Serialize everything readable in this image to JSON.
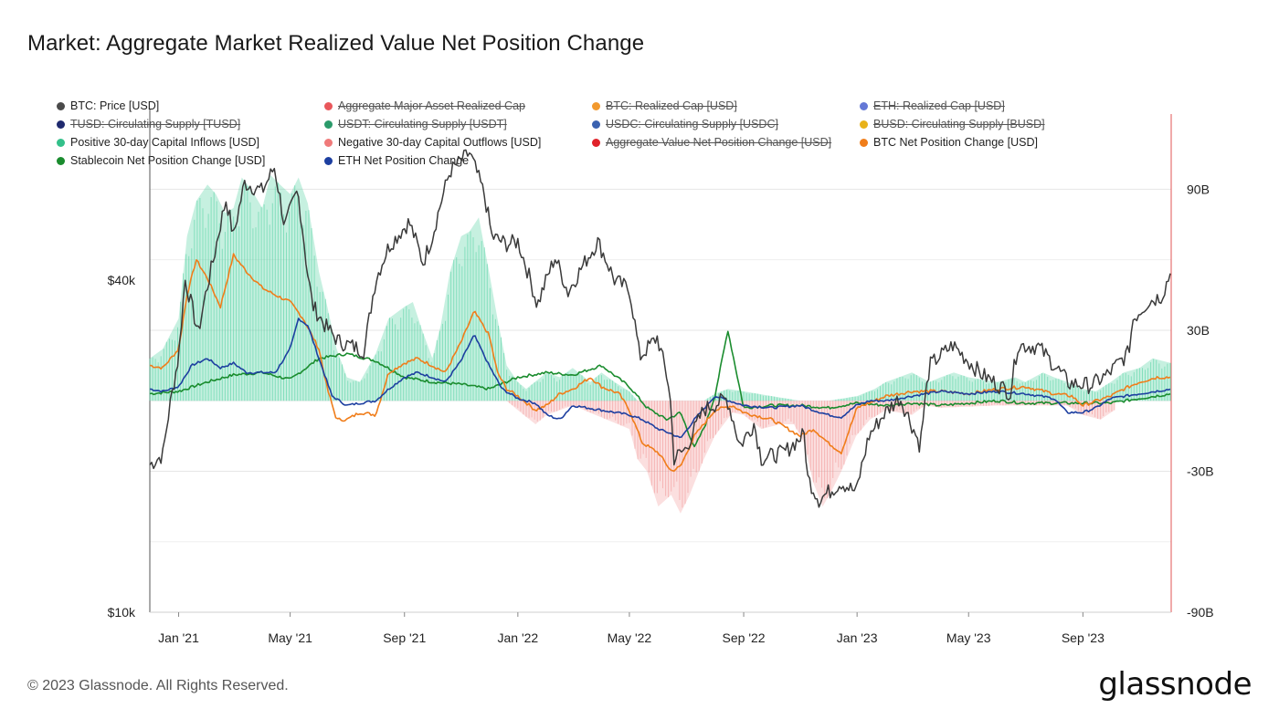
{
  "title": "Market: Aggregate Market Realized Value Net Position Change",
  "footer": "© 2023 Glassnode. All Rights Reserved.",
  "logo": "glassnode",
  "colors": {
    "btc_price": "#3a3a3a",
    "positive_inflows": "#4fd1a0",
    "negative_outflows": "#f28b8b",
    "btc_net": "#f07d1a",
    "stablecoin_net": "#1a8c2e",
    "eth_net": "#1d3fa0",
    "right_axis_line": "#e05555"
  },
  "legend": [
    {
      "label": "BTC: Price [USD]",
      "color": "#4a4a4a",
      "active": true
    },
    {
      "label": "Aggregate Major Asset Realized Cap",
      "color": "#e9575b",
      "active": false
    },
    {
      "label": "BTC: Realized Cap [USD]",
      "color": "#f2992e",
      "active": false
    },
    {
      "label": "ETH: Realized Cap [USD]",
      "color": "#6478d6",
      "active": false
    },
    {
      "label": "TUSD: Circulating Supply [TUSD]",
      "color": "#1f2a6e",
      "active": false
    },
    {
      "label": "USDT: Circulating Supply [USDT]",
      "color": "#2a9a6a",
      "active": false
    },
    {
      "label": "USDC: Circulating Supply [USDC]",
      "color": "#3a62b0",
      "active": false
    },
    {
      "label": "BUSD: Circulating Supply [BUSD]",
      "color": "#e8b21a",
      "active": false
    },
    {
      "label": "Positive 30-day Capital Inflows [USD]",
      "color": "#33c08a",
      "active": true
    },
    {
      "label": "Negative 30-day Capital Outflows [USD]",
      "color": "#f07a7a",
      "active": true
    },
    {
      "label": "Aggregate Value Net Position Change [USD]",
      "color": "#e0222a",
      "active": false
    },
    {
      "label": "BTC Net Position Change [USD]",
      "color": "#f07d1a",
      "active": true
    },
    {
      "label": "Stablecoin Net Position Change [USD]",
      "color": "#1a8c2e",
      "active": true
    },
    {
      "label": "ETH Net Position Change",
      "color": "#1d3fa0",
      "active": true
    }
  ],
  "chart_data": {
    "type": "line",
    "x_ticks": [
      "Jan '21",
      "May '21",
      "Sep '21",
      "Jan '22",
      "May '22",
      "Sep '22",
      "Jan '23",
      "May '23",
      "Sep '23"
    ],
    "x_tick_dates": [
      "2021-01-01",
      "2021-05-01",
      "2021-09-01",
      "2022-01-01",
      "2022-05-01",
      "2022-09-01",
      "2023-01-01",
      "2023-05-01",
      "2023-09-01"
    ],
    "x_range": [
      "2020-12-01",
      "2023-12-05"
    ],
    "y_left": {
      "ticks": [
        "$10k",
        "$40k"
      ],
      "tick_values": [
        10000,
        40000
      ],
      "scale": "log",
      "range": [
        10000,
        80000
      ]
    },
    "y_right": {
      "ticks": [
        "90B",
        "30B",
        "-30B",
        "-90B"
      ],
      "tick_values": [
        90,
        30,
        -30,
        -90
      ],
      "unit": "B USD",
      "range": [
        -90,
        122
      ]
    },
    "grid": true,
    "legend_position": "top",
    "series": [
      {
        "name": "BTC: Price [USD]",
        "axis": "left",
        "style": "line",
        "x": [
          "2020-12-01",
          "2020-12-15",
          "2021-01-01",
          "2021-01-08",
          "2021-01-22",
          "2021-02-08",
          "2021-02-21",
          "2021-03-01",
          "2021-03-13",
          "2021-04-01",
          "2021-04-14",
          "2021-04-25",
          "2021-05-09",
          "2021-05-19",
          "2021-05-25",
          "2021-06-08",
          "2021-06-22",
          "2021-07-20",
          "2021-08-01",
          "2021-08-15",
          "2021-09-06",
          "2021-09-21",
          "2021-10-01",
          "2021-10-20",
          "2021-11-10",
          "2021-11-26",
          "2021-12-04",
          "2021-12-20",
          "2022-01-01",
          "2022-01-22",
          "2022-02-10",
          "2022-02-24",
          "2022-03-28",
          "2022-04-15",
          "2022-05-01",
          "2022-05-12",
          "2022-05-31",
          "2022-06-13",
          "2022-06-18",
          "2022-07-01",
          "2022-07-20",
          "2022-08-14",
          "2022-08-28",
          "2022-09-12",
          "2022-09-20",
          "2022-10-15",
          "2022-11-05",
          "2022-11-09",
          "2022-11-21",
          "2022-12-15",
          "2022-12-31",
          "2023-01-14",
          "2023-01-31",
          "2023-02-16",
          "2023-03-10",
          "2023-03-20",
          "2023-04-14",
          "2023-05-01",
          "2023-05-15",
          "2023-06-15",
          "2023-06-23",
          "2023-07-15",
          "2023-08-17",
          "2023-09-10",
          "2023-09-28",
          "2023-10-20",
          "2023-10-25",
          "2023-11-10",
          "2023-11-25",
          "2023-12-05"
        ],
        "values": [
          18500,
          19300,
          29000,
          40000,
          32000,
          44000,
          56000,
          48000,
          60000,
          58000,
          64000,
          50000,
          58000,
          42000,
          36000,
          33000,
          31000,
          29800,
          40000,
          46000,
          51000,
          43000,
          48000,
          63000,
          68000,
          57000,
          48000,
          46500,
          47000,
          36000,
          44000,
          38000,
          47000,
          40000,
          38500,
          29000,
          31500,
          25500,
          19000,
          19800,
          23300,
          24400,
          20000,
          22000,
          19000,
          19500,
          21000,
          17500,
          16000,
          17200,
          16500,
          20900,
          23000,
          24500,
          20000,
          28000,
          30500,
          28500,
          27000,
          25000,
          30500,
          30300,
          26000,
          25800,
          27000,
          29500,
          34000,
          36500,
          37500,
          41500
        ]
      },
      {
        "name": "Positive 30-day Capital Inflows [USD]",
        "axis": "right",
        "style": "area",
        "x": [
          "2020-12-01",
          "2020-12-15",
          "2021-01-01",
          "2021-01-10",
          "2021-01-20",
          "2021-02-01",
          "2021-02-10",
          "2021-02-20",
          "2021-03-01",
          "2021-03-10",
          "2021-03-20",
          "2021-04-01",
          "2021-04-10",
          "2021-04-20",
          "2021-05-01",
          "2021-05-10",
          "2021-05-20",
          "2021-06-01",
          "2021-06-10",
          "2021-06-20",
          "2021-07-01",
          "2021-07-15",
          "2021-08-01",
          "2021-08-15",
          "2021-09-01",
          "2021-09-10",
          "2021-09-20",
          "2021-10-01",
          "2021-10-10",
          "2021-10-20",
          "2021-11-01",
          "2021-11-10",
          "2021-11-20",
          "2021-12-01",
          "2021-12-10",
          "2021-12-20",
          "2022-01-01",
          "2022-01-10",
          "2022-02-01",
          "2022-02-15",
          "2022-03-01",
          "2022-03-20",
          "2022-04-01",
          "2022-04-15",
          "2022-05-01",
          "2022-05-10",
          "2022-07-20",
          "2022-08-01",
          "2022-08-15",
          "2022-09-01",
          "2022-10-01",
          "2022-11-01",
          "2022-12-01",
          "2023-01-01",
          "2023-01-20",
          "2023-02-01",
          "2023-02-15",
          "2023-03-01",
          "2023-03-20",
          "2023-04-01",
          "2023-04-15",
          "2023-05-01",
          "2023-06-01",
          "2023-06-20",
          "2023-07-01",
          "2023-07-20",
          "2023-08-01",
          "2023-08-15",
          "2023-09-01",
          "2023-09-15",
          "2023-10-01",
          "2023-10-15",
          "2023-11-01",
          "2023-11-15",
          "2023-12-05"
        ],
        "values": [
          18,
          22,
          35,
          70,
          85,
          92,
          88,
          80,
          82,
          95,
          90,
          82,
          96,
          92,
          88,
          95,
          84,
          55,
          40,
          22,
          10,
          8,
          20,
          35,
          40,
          42,
          30,
          18,
          32,
          55,
          70,
          72,
          78,
          55,
          35,
          15,
          8,
          5,
          12,
          10,
          14,
          8,
          12,
          8,
          4,
          0,
          0,
          3,
          5,
          4,
          2,
          0,
          0,
          2,
          5,
          8,
          10,
          12,
          8,
          10,
          12,
          10,
          8,
          10,
          8,
          12,
          10,
          8,
          5,
          4,
          8,
          12,
          14,
          18,
          16
        ]
      },
      {
        "name": "Negative 30-day Capital Outflows [USD]",
        "axis": "right",
        "style": "area",
        "x": [
          "2021-12-20",
          "2022-01-01",
          "2022-01-20",
          "2022-02-01",
          "2022-03-01",
          "2022-05-01",
          "2022-05-10",
          "2022-05-20",
          "2022-06-01",
          "2022-06-15",
          "2022-06-25",
          "2022-07-05",
          "2022-07-20",
          "2022-08-01",
          "2022-08-20",
          "2022-09-01",
          "2022-09-20",
          "2022-10-10",
          "2022-10-25",
          "2022-11-05",
          "2022-11-15",
          "2022-11-25",
          "2022-12-05",
          "2022-12-15",
          "2022-12-31",
          "2023-01-15",
          "2023-02-01",
          "2023-03-01",
          "2023-03-15",
          "2023-04-01",
          "2023-06-01",
          "2023-08-15",
          "2023-09-01",
          "2023-09-20",
          "2023-10-05"
        ],
        "values": [
          0,
          -4,
          -10,
          -6,
          -2,
          -12,
          -25,
          -30,
          -45,
          -40,
          -48,
          -40,
          -25,
          -15,
          -5,
          -6,
          -12,
          -10,
          -10,
          -18,
          -35,
          -45,
          -38,
          -30,
          -15,
          -8,
          -4,
          -6,
          -2,
          -3,
          -2,
          -2,
          -6,
          -8,
          -4
        ]
      },
      {
        "name": "BTC Net Position Change [USD]",
        "axis": "right",
        "style": "line",
        "x": [
          "2020-12-01",
          "2020-12-15",
          "2021-01-01",
          "2021-01-10",
          "2021-01-20",
          "2021-02-01",
          "2021-02-15",
          "2021-03-01",
          "2021-03-15",
          "2021-04-01",
          "2021-04-15",
          "2021-05-01",
          "2021-05-15",
          "2021-06-01",
          "2021-06-10",
          "2021-06-20",
          "2021-07-01",
          "2021-07-15",
          "2021-08-01",
          "2021-08-15",
          "2021-09-01",
          "2021-09-15",
          "2021-10-01",
          "2021-10-15",
          "2021-11-01",
          "2021-11-15",
          "2021-12-01",
          "2021-12-10",
          "2021-12-20",
          "2022-01-01",
          "2022-01-20",
          "2022-02-01",
          "2022-02-15",
          "2022-03-01",
          "2022-03-20",
          "2022-04-01",
          "2022-04-20",
          "2022-05-01",
          "2022-05-15",
          "2022-06-01",
          "2022-06-15",
          "2022-06-25",
          "2022-07-10",
          "2022-08-01",
          "2022-08-20",
          "2022-09-01",
          "2022-10-01",
          "2022-11-01",
          "2022-11-15",
          "2022-12-01",
          "2022-12-15",
          "2023-01-01",
          "2023-01-20",
          "2023-02-01",
          "2023-03-01",
          "2023-04-01",
          "2023-05-01",
          "2023-06-01",
          "2023-07-01",
          "2023-08-01",
          "2023-08-20",
          "2023-09-01",
          "2023-10-01",
          "2023-10-15",
          "2023-11-01",
          "2023-11-20",
          "2023-12-05"
        ],
        "values": [
          15,
          14,
          22,
          45,
          60,
          52,
          40,
          62,
          55,
          48,
          45,
          42,
          35,
          22,
          5,
          -8,
          -8,
          -5,
          -6,
          12,
          16,
          18,
          15,
          12,
          25,
          38,
          28,
          12,
          5,
          2,
          -4,
          -2,
          3,
          5,
          10,
          6,
          3,
          -4,
          -18,
          -22,
          -30,
          -28,
          -15,
          -4,
          -2,
          -5,
          -8,
          -15,
          -12,
          -18,
          -22,
          -3,
          0,
          2,
          4,
          4,
          3,
          5,
          6,
          3,
          2,
          -2,
          2,
          5,
          8,
          10,
          10
        ]
      },
      {
        "name": "Stablecoin Net Position Change [USD]",
        "axis": "right",
        "style": "line",
        "x": [
          "2020-12-01",
          "2021-01-01",
          "2021-02-01",
          "2021-03-01",
          "2021-04-01",
          "2021-05-01",
          "2021-06-01",
          "2021-07-01",
          "2021-08-01",
          "2021-09-01",
          "2021-10-01",
          "2021-11-01",
          "2021-12-01",
          "2022-01-01",
          "2022-02-01",
          "2022-03-01",
          "2022-04-01",
          "2022-05-01",
          "2022-05-20",
          "2022-06-10",
          "2022-06-25",
          "2022-07-10",
          "2022-07-22",
          "2022-08-01",
          "2022-08-15",
          "2022-09-01",
          "2022-10-01",
          "2022-11-01",
          "2022-12-01",
          "2023-01-01",
          "2023-02-01",
          "2023-03-01",
          "2023-04-01",
          "2023-05-01",
          "2023-06-01",
          "2023-07-01",
          "2023-08-01",
          "2023-09-01",
          "2023-10-01",
          "2023-11-01",
          "2023-12-05"
        ],
        "values": [
          3,
          4,
          8,
          11,
          12,
          9,
          18,
          20,
          17,
          10,
          8,
          7,
          5,
          10,
          12,
          11,
          15,
          6,
          -3,
          -8,
          -5,
          -20,
          -10,
          2,
          30,
          -3,
          -2,
          -2,
          -3,
          -1,
          -2,
          -1,
          -2,
          -1,
          0,
          -1,
          -1,
          -1,
          -1,
          1,
          3
        ]
      },
      {
        "name": "ETH Net Position Change",
        "axis": "right",
        "style": "line",
        "x": [
          "2020-12-01",
          "2020-12-15",
          "2021-01-01",
          "2021-01-15",
          "2021-02-01",
          "2021-02-15",
          "2021-03-01",
          "2021-03-15",
          "2021-04-01",
          "2021-04-15",
          "2021-05-01",
          "2021-05-10",
          "2021-05-20",
          "2021-06-01",
          "2021-06-15",
          "2021-07-01",
          "2021-07-15",
          "2021-08-01",
          "2021-08-15",
          "2021-09-01",
          "2021-09-15",
          "2021-10-01",
          "2021-10-15",
          "2021-11-01",
          "2021-11-15",
          "2021-12-01",
          "2021-12-15",
          "2022-01-01",
          "2022-01-20",
          "2022-02-01",
          "2022-02-15",
          "2022-03-01",
          "2022-04-01",
          "2022-05-01",
          "2022-05-15",
          "2022-06-01",
          "2022-06-15",
          "2022-06-25",
          "2022-07-10",
          "2022-08-01",
          "2022-09-01",
          "2022-10-01",
          "2022-11-01",
          "2022-11-15",
          "2022-12-01",
          "2022-12-15",
          "2022-12-31",
          "2023-01-15",
          "2023-02-01",
          "2023-03-01",
          "2023-04-01",
          "2023-05-01",
          "2023-06-01",
          "2023-07-01",
          "2023-08-01",
          "2023-08-15",
          "2023-09-01",
          "2023-09-15",
          "2023-10-01",
          "2023-11-01",
          "2023-12-05"
        ],
        "values": [
          5,
          4,
          6,
          15,
          18,
          14,
          16,
          12,
          12,
          12,
          22,
          35,
          32,
          18,
          2,
          -2,
          -1,
          0,
          5,
          10,
          12,
          10,
          8,
          17,
          28,
          15,
          5,
          1,
          -1,
          -6,
          -8,
          -2,
          -4,
          -6,
          -8,
          -12,
          -14,
          -16,
          -8,
          2,
          -2,
          -3,
          -2,
          -4,
          -6,
          -7,
          -2,
          0,
          0,
          2,
          4,
          3,
          4,
          3,
          1,
          -5,
          -5,
          -3,
          1,
          3,
          5
        ]
      }
    ]
  }
}
